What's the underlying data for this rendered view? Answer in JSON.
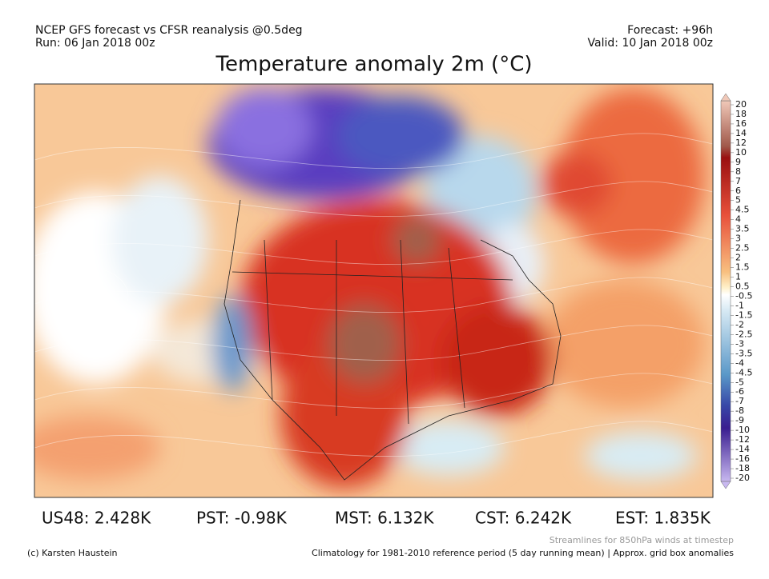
{
  "header": {
    "left": [
      "NCEP GFS forecast vs CFSR reanalysis @0.5deg",
      "Run: 06 Jan 2018 00z"
    ],
    "right": [
      "Forecast: +96h",
      "Valid: 10 Jan 2018 00z"
    ],
    "title": "Temperature anomaly 2m (°C)"
  },
  "colorbar": {
    "labels": [
      "20",
      "18",
      "16",
      "14",
      "12",
      "10",
      "9",
      "8",
      "7",
      "6",
      "5",
      "4.5",
      "4",
      "3.5",
      "3",
      "2.5",
      "2",
      "1.5",
      "1",
      "0.5",
      "-0.5",
      "-1",
      "-1.5",
      "-2",
      "-2.5",
      "-3",
      "-3.5",
      "-4",
      "-4.5",
      "-5",
      "-6",
      "-7",
      "-8",
      "-9",
      "-10",
      "-12",
      "-14",
      "-16",
      "-18",
      "-20"
    ]
  },
  "stats": [
    "US48: 2.428K",
    "PST: -0.98K",
    "MST: 6.132K",
    "CST: 6.242K",
    "EST: 1.835K"
  ],
  "footer": {
    "streamlines": "Streamlines for 850hPa winds at timestep",
    "credit": "(c) Karsten Haustein",
    "climatology": "Climatology for 1981-2010 reference period (5 day running mean) | Approx. grid box anomalies"
  }
}
